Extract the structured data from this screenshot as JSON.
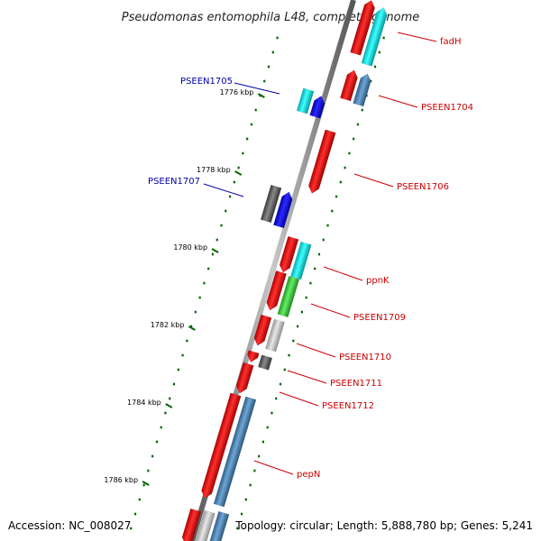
{
  "title": "Pseudomonas entomophila L48, complete genome",
  "footer": {
    "accession": "Accession: NC_008027",
    "topology": "Topology: circular; Length: 5,888,780 bp; Genes: 5,241"
  },
  "ticks": [
    {
      "label": "1776 kbp"
    },
    {
      "label": "1778 kbp"
    },
    {
      "label": "1780 kbp"
    },
    {
      "label": "1782 kbp"
    },
    {
      "label": "1784 kbp"
    },
    {
      "label": "1786 kbp"
    }
  ],
  "genes": [
    {
      "name": "fadH"
    },
    {
      "name": "PSEEN1704"
    },
    {
      "name": "PSEEN1705"
    },
    {
      "name": "PSEEN1706"
    },
    {
      "name": "PSEEN1707"
    },
    {
      "name": "ppnK"
    },
    {
      "name": "PSEEN1709"
    },
    {
      "name": "PSEEN1710"
    },
    {
      "name": "PSEEN1711"
    },
    {
      "name": "PSEEN1712"
    },
    {
      "name": "pepN"
    }
  ],
  "colors": {
    "red": "#ff0000",
    "cyan": "#00e5e5",
    "blue": "#0000ff",
    "steel": "#4682b4",
    "gray": "#666666",
    "lightgray": "#bbbbbb",
    "green": "#33cc33",
    "backbone": "#888888",
    "tick": "#006600"
  }
}
